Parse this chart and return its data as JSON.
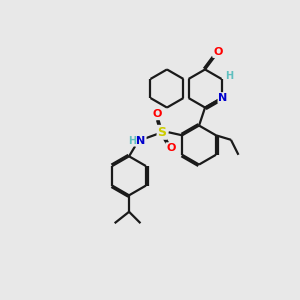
{
  "background_color": "#e8e8e8",
  "bond_color": "#1a1a1a",
  "atom_colors": {
    "O": "#ff0000",
    "N": "#0000cd",
    "S": "#cccc00",
    "H": "#5fbfbf",
    "C": "#1a1a1a"
  },
  "figsize": [
    3.0,
    3.0
  ],
  "dpi": 100
}
